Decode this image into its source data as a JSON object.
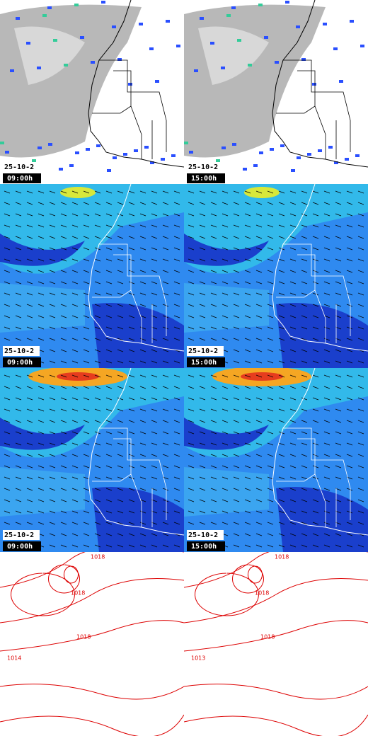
{
  "panels": [
    {
      "date": "25-10-2",
      "time": "09:00h"
    },
    {
      "date": "25-10-2",
      "time": "15:00h"
    },
    {
      "date": "25-10-2",
      "time": "09:00h"
    },
    {
      "date": "25-10-2",
      "time": "15:00h"
    },
    {
      "date": "25-10-2",
      "time": "09:00h"
    },
    {
      "date": "25-10-2",
      "time": "15:00h"
    },
    {
      "isobars": [
        "1018",
        "1018",
        "1018",
        "1014"
      ]
    },
    {
      "isobars": [
        "1018",
        "1018",
        "1018",
        "1013"
      ]
    }
  ]
}
